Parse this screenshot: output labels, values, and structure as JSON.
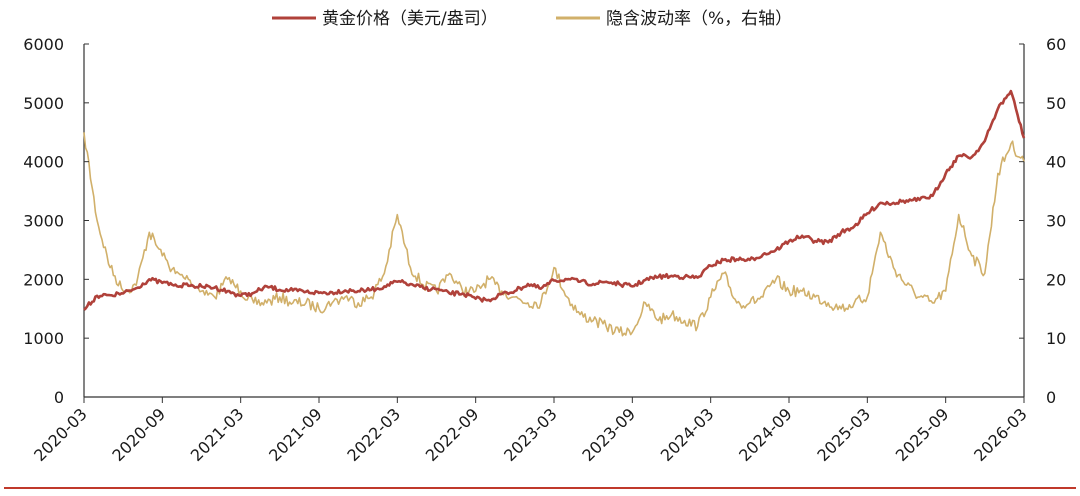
{
  "chart_data": {
    "type": "line",
    "title": "",
    "legend_position": "top-center",
    "grid": false,
    "x_ticks": [
      "2020-03",
      "2020-09",
      "2021-03",
      "2021-09",
      "2022-03",
      "2022-09",
      "2023-03",
      "2023-09",
      "2024-03",
      "2024-09",
      "2025-03",
      "2025-09",
      "2026-03"
    ],
    "y_left": {
      "min": 0,
      "max": 6000,
      "ticks": [
        "0",
        "1000",
        "2000",
        "3000",
        "4000",
        "5000",
        "6000"
      ]
    },
    "y_right": {
      "min": 0,
      "max": 60,
      "ticks": [
        "0",
        "10",
        "20",
        "30",
        "40",
        "50",
        "60"
      ]
    },
    "series": [
      {
        "name": "黄金价格（美元/盎司）",
        "axis": "left",
        "color": "#b0413a",
        "points": [
          [
            "2020-03",
            1480
          ],
          [
            "2020-04",
            1720
          ],
          [
            "2020-05",
            1730
          ],
          [
            "2020-06",
            1760
          ],
          [
            "2020-07",
            1850
          ],
          [
            "2020-08",
            2000
          ],
          [
            "2020-09",
            1940
          ],
          [
            "2020-10",
            1910
          ],
          [
            "2020-11",
            1890
          ],
          [
            "2020-12",
            1880
          ],
          [
            "2021-01",
            1860
          ],
          [
            "2021-02",
            1800
          ],
          [
            "2021-03",
            1720
          ],
          [
            "2021-04",
            1770
          ],
          [
            "2021-05",
            1880
          ],
          [
            "2021-06",
            1820
          ],
          [
            "2021-07",
            1810
          ],
          [
            "2021-08",
            1790
          ],
          [
            "2021-09",
            1770
          ],
          [
            "2021-10",
            1780
          ],
          [
            "2021-11",
            1810
          ],
          [
            "2021-12",
            1800
          ],
          [
            "2022-01",
            1820
          ],
          [
            "2022-02",
            1880
          ],
          [
            "2022-03",
            1960
          ],
          [
            "2022-04",
            1920
          ],
          [
            "2022-05",
            1850
          ],
          [
            "2022-06",
            1830
          ],
          [
            "2022-07",
            1760
          ],
          [
            "2022-08",
            1760
          ],
          [
            "2022-09",
            1670
          ],
          [
            "2022-10",
            1650
          ],
          [
            "2022-11",
            1750
          ],
          [
            "2022-12",
            1800
          ],
          [
            "2023-01",
            1920
          ],
          [
            "2023-02",
            1840
          ],
          [
            "2023-03",
            1980
          ],
          [
            "2023-04",
            2000
          ],
          [
            "2023-05",
            1960
          ],
          [
            "2023-06",
            1920
          ],
          [
            "2023-07",
            1960
          ],
          [
            "2023-08",
            1920
          ],
          [
            "2023-09",
            1880
          ],
          [
            "2023-10",
            1990
          ],
          [
            "2023-11",
            2040
          ],
          [
            "2023-12",
            2060
          ],
          [
            "2024-01",
            2040
          ],
          [
            "2024-02",
            2030
          ],
          [
            "2024-03",
            2230
          ],
          [
            "2024-04",
            2330
          ],
          [
            "2024-05",
            2340
          ],
          [
            "2024-06",
            2330
          ],
          [
            "2024-07",
            2420
          ],
          [
            "2024-08",
            2500
          ],
          [
            "2024-09",
            2650
          ],
          [
            "2024-10",
            2740
          ],
          [
            "2024-11",
            2650
          ],
          [
            "2024-12",
            2630
          ],
          [
            "2025-01",
            2800
          ],
          [
            "2025-02",
            2900
          ],
          [
            "2025-03",
            3120
          ],
          [
            "2025-04",
            3300
          ],
          [
            "2025-05",
            3300
          ],
          [
            "2025-06",
            3340
          ],
          [
            "2025-07",
            3350
          ],
          [
            "2025-08",
            3420
          ],
          [
            "2025-09",
            3800
          ],
          [
            "2025-10",
            4100
          ],
          [
            "2025-11",
            4080
          ],
          [
            "2025-12",
            4350
          ],
          [
            "2026-01",
            4900
          ],
          [
            "2026-02",
            5200
          ],
          [
            "2026-03",
            4400
          ]
        ]
      },
      {
        "name": "隐含波动率（%，右轴）",
        "axis": "right",
        "color": "#d1b06a",
        "points": [
          [
            "2020-03",
            45
          ],
          [
            "2020-04",
            30
          ],
          [
            "2020-05",
            22
          ],
          [
            "2020-06",
            18
          ],
          [
            "2020-07",
            19
          ],
          [
            "2020-08",
            28
          ],
          [
            "2020-09",
            24
          ],
          [
            "2020-10",
            21
          ],
          [
            "2020-11",
            20
          ],
          [
            "2020-12",
            18
          ],
          [
            "2021-01",
            17
          ],
          [
            "2021-02",
            20
          ],
          [
            "2021-03",
            18
          ],
          [
            "2021-04",
            16
          ],
          [
            "2021-05",
            16
          ],
          [
            "2021-06",
            17
          ],
          [
            "2021-07",
            16
          ],
          [
            "2021-08",
            16
          ],
          [
            "2021-09",
            15
          ],
          [
            "2021-10",
            16
          ],
          [
            "2021-11",
            17
          ],
          [
            "2021-12",
            16
          ],
          [
            "2022-01",
            17
          ],
          [
            "2022-02",
            21
          ],
          [
            "2022-03",
            31
          ],
          [
            "2022-04",
            22
          ],
          [
            "2022-05",
            19
          ],
          [
            "2022-06",
            18
          ],
          [
            "2022-07",
            21
          ],
          [
            "2022-08",
            18
          ],
          [
            "2022-09",
            18
          ],
          [
            "2022-10",
            20
          ],
          [
            "2022-11",
            18
          ],
          [
            "2022-12",
            17
          ],
          [
            "2023-01",
            16
          ],
          [
            "2023-02",
            16
          ],
          [
            "2023-03",
            22
          ],
          [
            "2023-04",
            17
          ],
          [
            "2023-05",
            14
          ],
          [
            "2023-06",
            13
          ],
          [
            "2023-07",
            12
          ],
          [
            "2023-08",
            11
          ],
          [
            "2023-09",
            11
          ],
          [
            "2023-10",
            16
          ],
          [
            "2023-11",
            13
          ],
          [
            "2023-12",
            14
          ],
          [
            "2024-01",
            13
          ],
          [
            "2024-02",
            12
          ],
          [
            "2024-03",
            17
          ],
          [
            "2024-04",
            21
          ],
          [
            "2024-05",
            16
          ],
          [
            "2024-06",
            16
          ],
          [
            "2024-07",
            17
          ],
          [
            "2024-08",
            20
          ],
          [
            "2024-09",
            18
          ],
          [
            "2024-10",
            18
          ],
          [
            "2024-11",
            17
          ],
          [
            "2024-12",
            16
          ],
          [
            "2025-01",
            15
          ],
          [
            "2025-02",
            16
          ],
          [
            "2025-03",
            17
          ],
          [
            "2025-04",
            28
          ],
          [
            "2025-05",
            22
          ],
          [
            "2025-06",
            19
          ],
          [
            "2025-07",
            17
          ],
          [
            "2025-08",
            16
          ],
          [
            "2025-09",
            18
          ],
          [
            "2025-10",
            31
          ],
          [
            "2025-11",
            24
          ],
          [
            "2025-12",
            21
          ],
          [
            "2026-01",
            38
          ],
          [
            "2026-02",
            43
          ],
          [
            "2026-03",
            40
          ]
        ]
      }
    ]
  },
  "footer_line_color": "#c0392b"
}
